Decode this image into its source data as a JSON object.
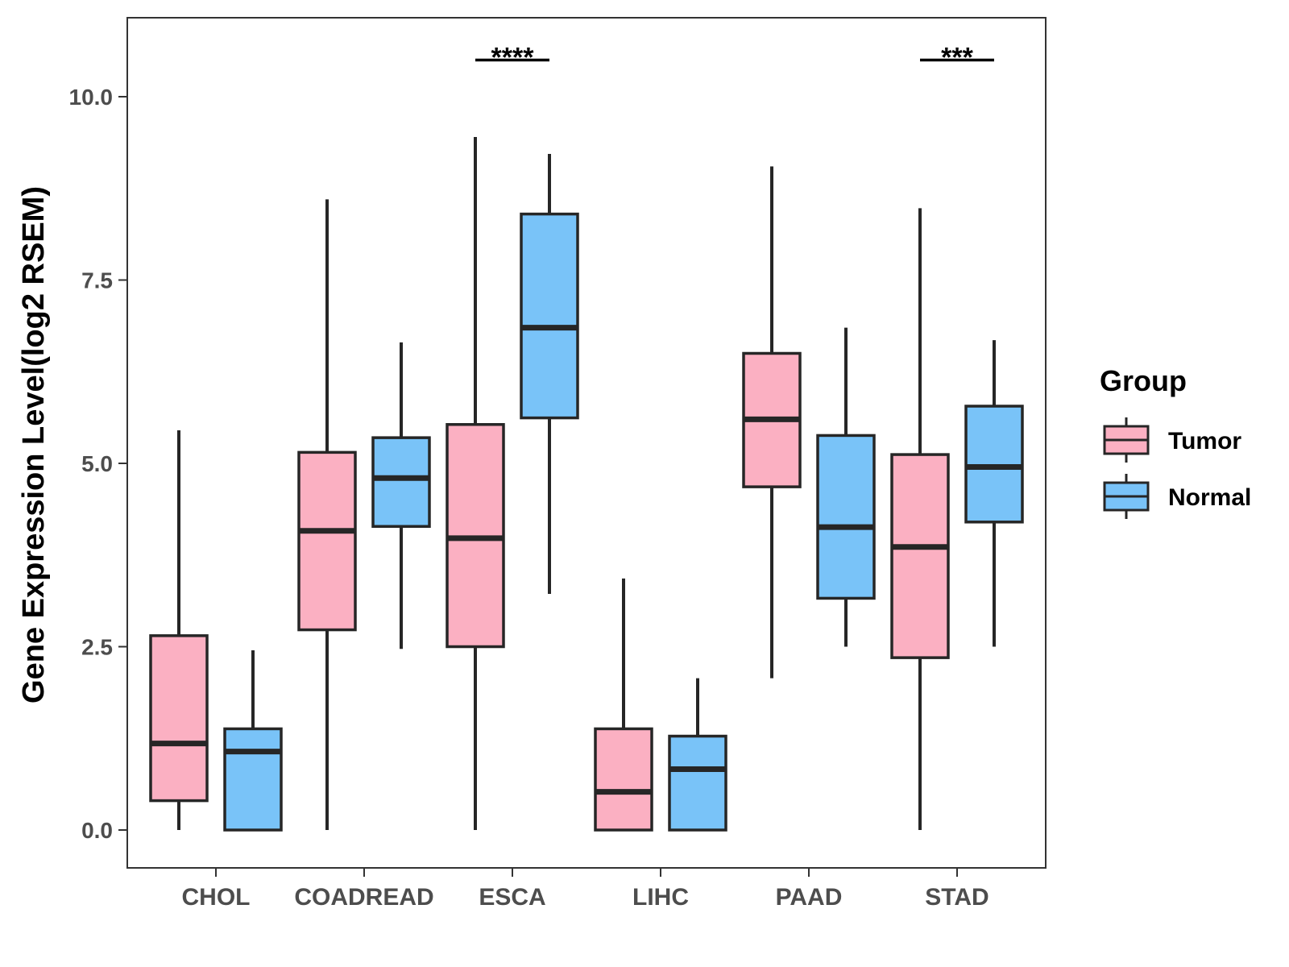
{
  "chart_data": {
    "type": "boxplot",
    "title": "",
    "xlabel": "",
    "ylabel": "Gene Expression Level(log2 RSEM)",
    "ylim": [
      -0.5,
      11.1
    ],
    "yticks": [
      0.0,
      2.5,
      5.0,
      7.5,
      10.0
    ],
    "ytick_labels": [
      "0.0",
      "2.5",
      "5.0",
      "7.5",
      "10.0"
    ],
    "categories": [
      "CHOL",
      "COADREAD",
      "ESCA",
      "LIHC",
      "PAAD",
      "STAD"
    ],
    "grid": false,
    "legend": {
      "title": "Group",
      "position": "right",
      "entries": [
        "Tumor",
        "Normal"
      ]
    },
    "series": [
      {
        "name": "Tumor",
        "color": "#fbb0c2",
        "boxes": [
          {
            "category": "CHOL",
            "min": 0.0,
            "q1": 0.4,
            "median": 1.18,
            "q3": 2.65,
            "max": 5.45
          },
          {
            "category": "COADREAD",
            "min": 0.0,
            "q1": 2.73,
            "median": 4.08,
            "q3": 5.15,
            "max": 8.6
          },
          {
            "category": "ESCA",
            "min": 0.0,
            "q1": 2.5,
            "median": 3.98,
            "q3": 5.53,
            "max": 9.45
          },
          {
            "category": "LIHC",
            "min": 0.0,
            "q1": 0.0,
            "median": 0.52,
            "q3": 1.38,
            "max": 3.43
          },
          {
            "category": "PAAD",
            "min": 2.07,
            "q1": 4.68,
            "median": 5.6,
            "q3": 6.5,
            "max": 9.05
          },
          {
            "category": "STAD",
            "min": 0.0,
            "q1": 2.35,
            "median": 3.86,
            "q3": 5.12,
            "max": 8.48
          }
        ]
      },
      {
        "name": "Normal",
        "color": "#79c3f8",
        "boxes": [
          {
            "category": "CHOL",
            "min": 0.0,
            "q1": 0.0,
            "median": 1.07,
            "q3": 1.38,
            "max": 2.45
          },
          {
            "category": "COADREAD",
            "min": 2.47,
            "q1": 4.14,
            "median": 4.8,
            "q3": 5.35,
            "max": 6.65
          },
          {
            "category": "ESCA",
            "min": 3.22,
            "q1": 5.62,
            "median": 6.85,
            "q3": 8.4,
            "max": 9.22
          },
          {
            "category": "LIHC",
            "min": 0.0,
            "q1": 0.0,
            "median": 0.83,
            "q3": 1.28,
            "max": 2.07
          },
          {
            "category": "PAAD",
            "min": 2.5,
            "q1": 3.16,
            "median": 4.13,
            "q3": 5.38,
            "max": 6.85
          },
          {
            "category": "STAD",
            "min": 2.5,
            "q1": 4.2,
            "median": 4.95,
            "q3": 5.78,
            "max": 6.68
          }
        ]
      }
    ],
    "annotations": [
      {
        "category": "ESCA",
        "label": "****",
        "y": 10.5
      },
      {
        "category": "STAD",
        "label": "***",
        "y": 10.5
      }
    ]
  }
}
